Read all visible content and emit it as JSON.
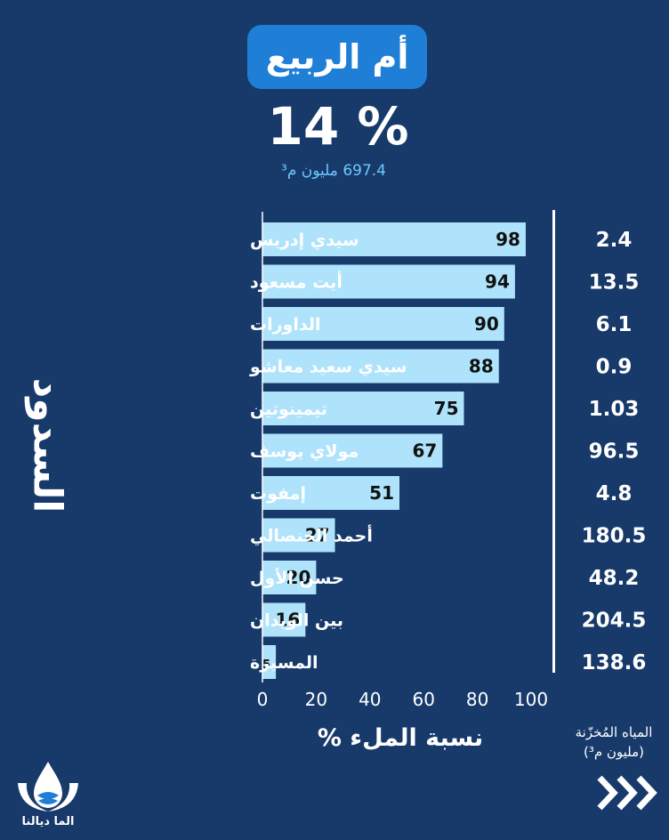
{
  "header": {
    "basin_name": "أم الربيع",
    "fill_percent": "14 %",
    "stored_volume": "697.4 مليون م³"
  },
  "side_title": "السدود",
  "chart_data": {
    "type": "bar",
    "orientation": "horizontal",
    "categories": [
      "سيدي إدريس",
      "أيت مسعود",
      "الداورات",
      "سيدي سعيد معاشو",
      "تيمينوتين",
      "مولاي يوسف",
      "إمفوت",
      "أحمد الحنصالي",
      "حسن الأول",
      "بين الويدان",
      "المسيرة"
    ],
    "values": [
      98,
      94,
      90,
      88,
      75,
      67,
      51,
      27,
      20,
      16,
      5
    ],
    "storage": [
      "2.4",
      "13.5",
      "6.1",
      "0.9",
      "1.03",
      "96.5",
      "4.8",
      "180.5",
      "48.2",
      "204.5",
      "138.6"
    ],
    "xticks": [
      0,
      20,
      40,
      60,
      80,
      100
    ],
    "xlim": [
      0,
      100
    ],
    "xlabel": "نسبة الملء %",
    "bar_color": "#aee3fb",
    "grid": false
  },
  "storage_label": {
    "line1": "المياه المُخزّنة",
    "line2": "(مليون م³)"
  },
  "logo": {
    "text": "الما ديالنا",
    "icon": "water-drop-hands-icon"
  },
  "next_icon": "chevron-right-triple-icon",
  "colors": {
    "background": "#173a6b",
    "title_box": "#1f7fd6",
    "accent": "#6ec8ff"
  }
}
